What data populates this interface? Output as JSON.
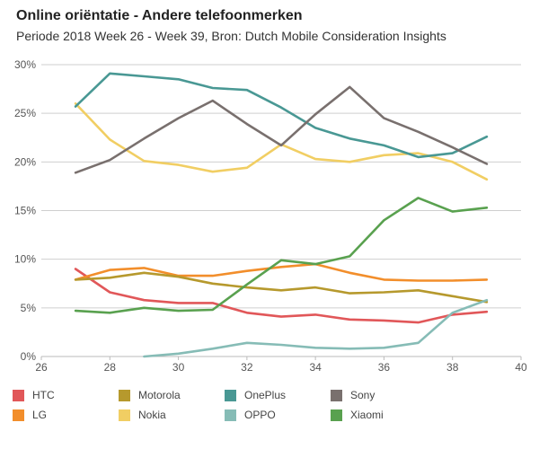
{
  "chart_data": {
    "type": "line",
    "title": "Online oriëntatie - Andere telefoonmerken",
    "subtitle": "Periode 2018 Week 26 - Week 39, Bron: Dutch Mobile Consideration Insights",
    "xlim": [
      26,
      40
    ],
    "ylim": [
      0,
      30
    ],
    "x_ticks": [
      "26",
      "28",
      "30",
      "32",
      "34",
      "36",
      "38",
      "40"
    ],
    "y_ticks": [
      "0%",
      "5%",
      "10%",
      "15%",
      "20%",
      "25%",
      "30%"
    ],
    "grid": "horizontal",
    "legend_position": "bottom",
    "series": [
      {
        "name": "HTC",
        "color": "#e15759",
        "x": [
          27,
          28,
          29,
          30,
          31,
          32,
          33,
          34,
          35,
          36,
          37,
          38,
          39
        ],
        "values": [
          9.0,
          6.6,
          5.8,
          5.5,
          5.5,
          4.5,
          4.1,
          4.3,
          3.8,
          3.7,
          3.5,
          4.3,
          4.6
        ]
      },
      {
        "name": "LG",
        "color": "#f28e2b",
        "x": [
          27,
          28,
          29,
          30,
          31,
          32,
          33,
          34,
          35,
          36,
          37,
          38,
          39
        ],
        "values": [
          7.9,
          8.9,
          9.1,
          8.3,
          8.3,
          8.8,
          9.2,
          9.5,
          8.6,
          7.9,
          7.8,
          7.8,
          7.9
        ]
      },
      {
        "name": "Motorola",
        "color": "#b6992d",
        "x": [
          27,
          28,
          29,
          30,
          31,
          32,
          33,
          34,
          35,
          36,
          37,
          38,
          39
        ],
        "values": [
          7.9,
          8.1,
          8.6,
          8.2,
          7.5,
          7.1,
          6.8,
          7.1,
          6.5,
          6.6,
          6.8,
          6.2,
          5.6
        ]
      },
      {
        "name": "Nokia",
        "color": "#f1ce63",
        "x": [
          27,
          28,
          29,
          30,
          31,
          32,
          33,
          34,
          35,
          36,
          37,
          38,
          39
        ],
        "values": [
          26.0,
          22.3,
          20.1,
          19.7,
          19.0,
          19.4,
          21.8,
          20.3,
          20.0,
          20.7,
          20.9,
          20.0,
          18.2
        ]
      },
      {
        "name": "OnePlus",
        "color": "#499894",
        "x": [
          27,
          28,
          29,
          30,
          31,
          32,
          33,
          34,
          35,
          36,
          37,
          38,
          39
        ],
        "values": [
          25.7,
          29.1,
          28.8,
          28.5,
          27.6,
          27.4,
          25.6,
          23.5,
          22.4,
          21.7,
          20.5,
          20.9,
          22.6
        ]
      },
      {
        "name": "OPPO",
        "color": "#86bcb6",
        "x": [
          29,
          30,
          31,
          32,
          33,
          34,
          35,
          36,
          37,
          38,
          39
        ],
        "values": [
          0.0,
          0.3,
          0.8,
          1.4,
          1.2,
          0.9,
          0.8,
          0.9,
          1.4,
          4.5,
          5.8
        ]
      },
      {
        "name": "Sony",
        "color": "#79706e",
        "x": [
          27,
          28,
          29,
          30,
          31,
          32,
          33,
          34,
          35,
          36,
          37,
          38,
          39
        ],
        "values": [
          18.9,
          20.2,
          22.4,
          24.5,
          26.3,
          23.9,
          21.7,
          24.9,
          27.7,
          24.5,
          23.1,
          21.5,
          19.8
        ]
      },
      {
        "name": "Xiaomi",
        "color": "#59a14f",
        "x": [
          27,
          28,
          29,
          30,
          31,
          32,
          33,
          34,
          35,
          36,
          37,
          38,
          39
        ],
        "values": [
          4.7,
          4.5,
          5.0,
          4.7,
          4.8,
          7.4,
          9.9,
          9.5,
          10.3,
          14.0,
          16.3,
          14.9,
          15.3
        ]
      }
    ]
  }
}
